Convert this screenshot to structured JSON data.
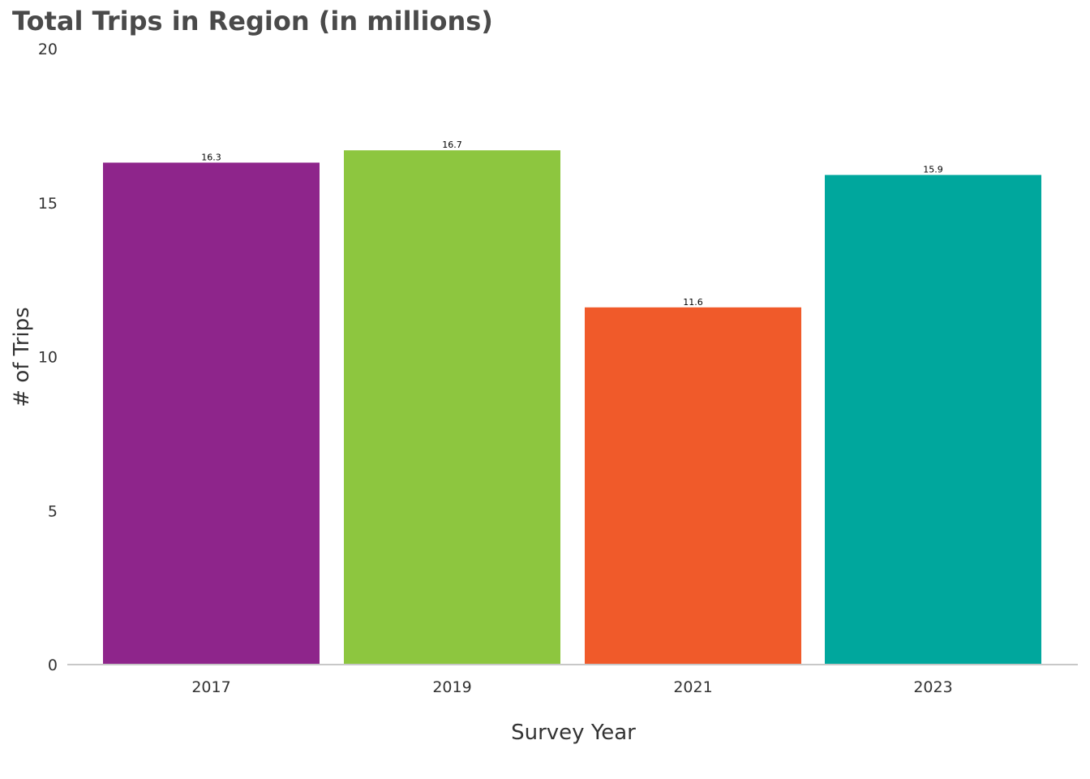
{
  "chart_data": {
    "type": "bar",
    "title": "Total Trips in Region (in millions)",
    "xlabel": "Survey Year",
    "ylabel": "# of Trips",
    "categories": [
      "2017",
      "2019",
      "2021",
      "2023"
    ],
    "values": [
      16.3,
      16.7,
      11.6,
      15.9
    ],
    "value_labels": [
      "16.3",
      "16.7",
      "11.6",
      "15.9"
    ],
    "colors": [
      "#8e258b",
      "#8dc63f",
      "#f05a2a",
      "#00a79d"
    ],
    "ylim": [
      0,
      20
    ],
    "yticks": [
      0,
      5,
      10,
      15,
      20
    ],
    "grid": false,
    "legend": "none"
  }
}
